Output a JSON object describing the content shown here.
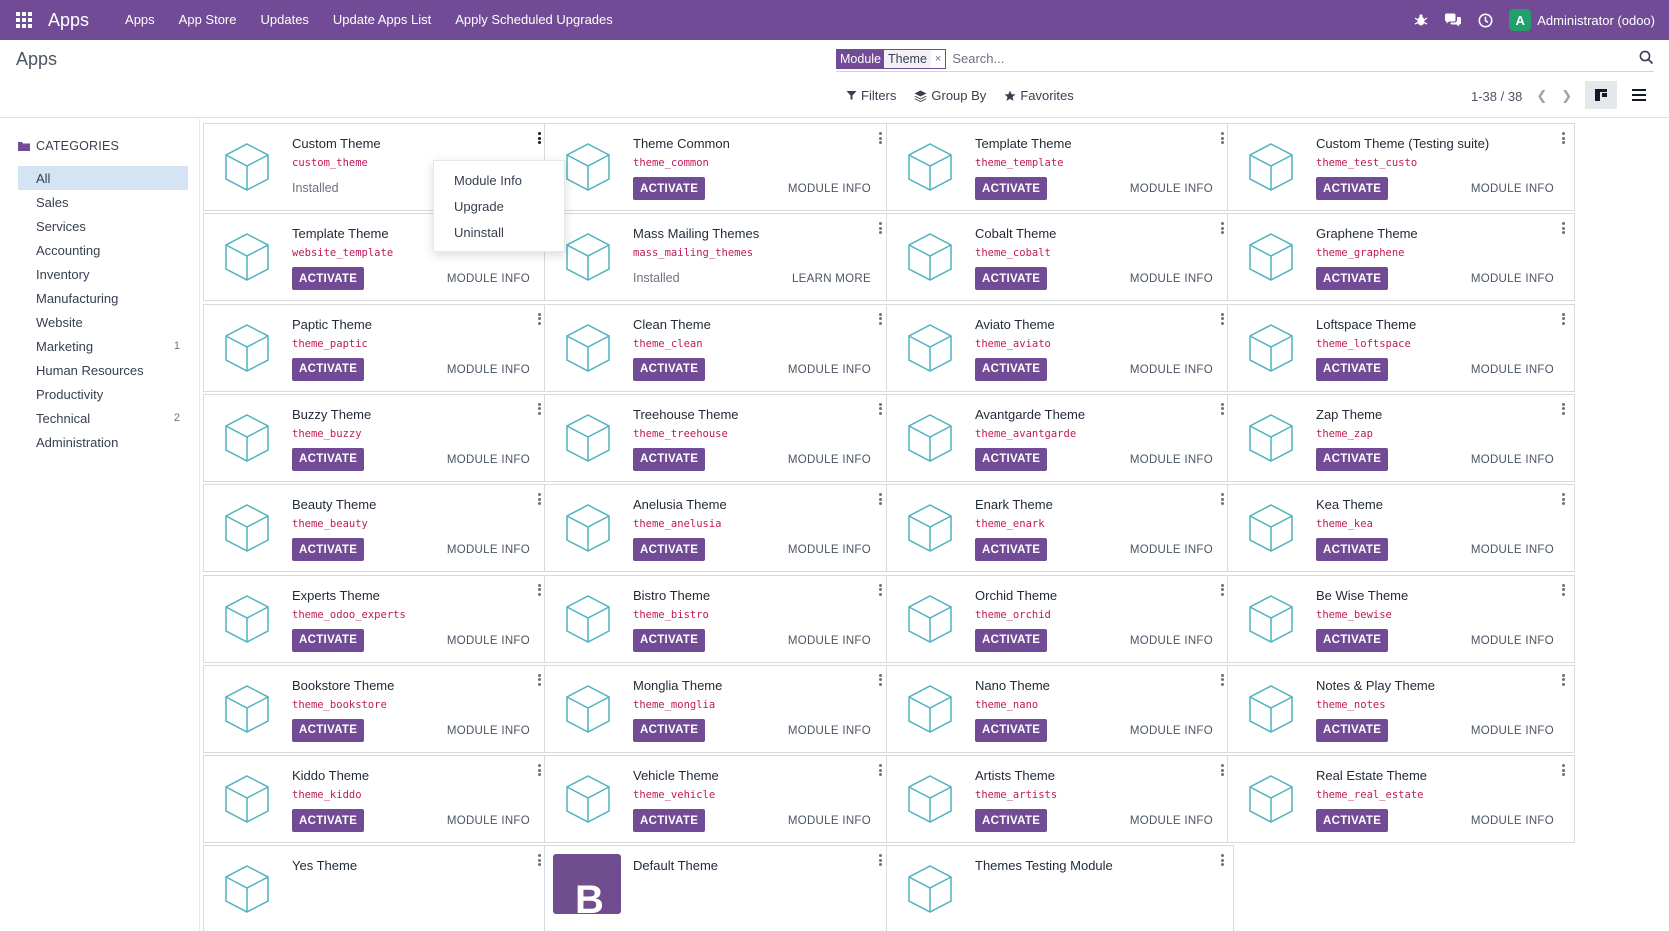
{
  "navbar": {
    "brand": "Apps",
    "menu": [
      "Apps",
      "App Store",
      "Updates",
      "Update Apps List",
      "Apply Scheduled Upgrades"
    ],
    "user_initial": "A",
    "user_name": "Administrator (odoo)"
  },
  "control_panel": {
    "breadcrumb": "Apps",
    "facet": {
      "label": "Module",
      "value": "Theme",
      "remove": "×"
    },
    "search_placeholder": "Search...",
    "filters_label": "Filters",
    "groupby_label": "Group By",
    "favorites_label": "Favorites",
    "pager": "1-38 / 38"
  },
  "sidebar": {
    "heading": "CATEGORIES",
    "items": [
      {
        "label": "All",
        "count": "",
        "active": true
      },
      {
        "label": "Sales",
        "count": ""
      },
      {
        "label": "Services",
        "count": ""
      },
      {
        "label": "Accounting",
        "count": ""
      },
      {
        "label": "Inventory",
        "count": ""
      },
      {
        "label": "Manufacturing",
        "count": ""
      },
      {
        "label": "Website",
        "count": ""
      },
      {
        "label": "Marketing",
        "count": "1"
      },
      {
        "label": "Human Resources",
        "count": ""
      },
      {
        "label": "Productivity",
        "count": ""
      },
      {
        "label": "Technical",
        "count": "2"
      },
      {
        "label": "Administration",
        "count": ""
      }
    ]
  },
  "labels": {
    "activate": "ACTIVATE",
    "module_info": "MODULE INFO",
    "learn_more": "LEARN MORE",
    "installed": "Installed"
  },
  "dropdown": [
    "Module Info",
    "Upgrade",
    "Uninstall"
  ],
  "modules": [
    {
      "title": "Custom Theme",
      "tech": "custom_theme",
      "state": "installed",
      "link": "none"
    },
    {
      "title": "Theme Common",
      "tech": "theme_common",
      "state": "activate",
      "link": "module_info"
    },
    {
      "title": "Template Theme",
      "tech": "theme_template",
      "state": "activate",
      "link": "module_info"
    },
    {
      "title": "Custom Theme (Testing suite)",
      "tech": "theme_test_custo",
      "state": "activate",
      "link": "module_info"
    },
    {
      "title": "Template Theme",
      "tech": "website_template",
      "state": "activate",
      "link": "module_info"
    },
    {
      "title": "Mass Mailing Themes",
      "tech": "mass_mailing_themes",
      "state": "installed",
      "link": "learn_more"
    },
    {
      "title": "Cobalt Theme",
      "tech": "theme_cobalt",
      "state": "activate",
      "link": "module_info"
    },
    {
      "title": "Graphene Theme",
      "tech": "theme_graphene",
      "state": "activate",
      "link": "module_info"
    },
    {
      "title": "Paptic Theme",
      "tech": "theme_paptic",
      "state": "activate",
      "link": "module_info"
    },
    {
      "title": "Clean Theme",
      "tech": "theme_clean",
      "state": "activate",
      "link": "module_info"
    },
    {
      "title": "Aviato Theme",
      "tech": "theme_aviato",
      "state": "activate",
      "link": "module_info"
    },
    {
      "title": "Loftspace Theme",
      "tech": "theme_loftspace",
      "state": "activate",
      "link": "module_info"
    },
    {
      "title": "Buzzy Theme",
      "tech": "theme_buzzy",
      "state": "activate",
      "link": "module_info"
    },
    {
      "title": "Treehouse Theme",
      "tech": "theme_treehouse",
      "state": "activate",
      "link": "module_info"
    },
    {
      "title": "Avantgarde Theme",
      "tech": "theme_avantgarde",
      "state": "activate",
      "link": "module_info"
    },
    {
      "title": "Zap Theme",
      "tech": "theme_zap",
      "state": "activate",
      "link": "module_info"
    },
    {
      "title": "Beauty Theme",
      "tech": "theme_beauty",
      "state": "activate",
      "link": "module_info"
    },
    {
      "title": "Anelusia Theme",
      "tech": "theme_anelusia",
      "state": "activate",
      "link": "module_info"
    },
    {
      "title": "Enark Theme",
      "tech": "theme_enark",
      "state": "activate",
      "link": "module_info"
    },
    {
      "title": "Kea Theme",
      "tech": "theme_kea",
      "state": "activate",
      "link": "module_info"
    },
    {
      "title": "Experts Theme",
      "tech": "theme_odoo_experts",
      "state": "activate",
      "link": "module_info"
    },
    {
      "title": "Bistro Theme",
      "tech": "theme_bistro",
      "state": "activate",
      "link": "module_info"
    },
    {
      "title": "Orchid Theme",
      "tech": "theme_orchid",
      "state": "activate",
      "link": "module_info"
    },
    {
      "title": "Be Wise Theme",
      "tech": "theme_bewise",
      "state": "activate",
      "link": "module_info"
    },
    {
      "title": "Bookstore Theme",
      "tech": "theme_bookstore",
      "state": "activate",
      "link": "module_info"
    },
    {
      "title": "Monglia Theme",
      "tech": "theme_monglia",
      "state": "activate",
      "link": "module_info"
    },
    {
      "title": "Nano Theme",
      "tech": "theme_nano",
      "state": "activate",
      "link": "module_info"
    },
    {
      "title": "Notes & Play Theme",
      "tech": "theme_notes",
      "state": "activate",
      "link": "module_info"
    },
    {
      "title": "Kiddo Theme",
      "tech": "theme_kiddo",
      "state": "activate",
      "link": "module_info"
    },
    {
      "title": "Vehicle Theme",
      "tech": "theme_vehicle",
      "state": "activate",
      "link": "module_info"
    },
    {
      "title": "Artists Theme",
      "tech": "theme_artists",
      "state": "activate",
      "link": "module_info"
    },
    {
      "title": "Real Estate Theme",
      "tech": "theme_real_estate",
      "state": "activate",
      "link": "module_info"
    },
    {
      "title": "Yes Theme",
      "tech": "",
      "state": "partial",
      "link": "none"
    },
    {
      "title": "Default Theme",
      "tech": "",
      "state": "partial",
      "link": "none",
      "logo_letter": "B"
    },
    {
      "title": "Themes Testing Module",
      "tech": "",
      "state": "partial",
      "link": "none"
    }
  ],
  "colors": {
    "brand": "#714b95",
    "technical_name": "#c2185b",
    "cube": "#4fb3bf",
    "active_category": "#d4e4f2"
  }
}
